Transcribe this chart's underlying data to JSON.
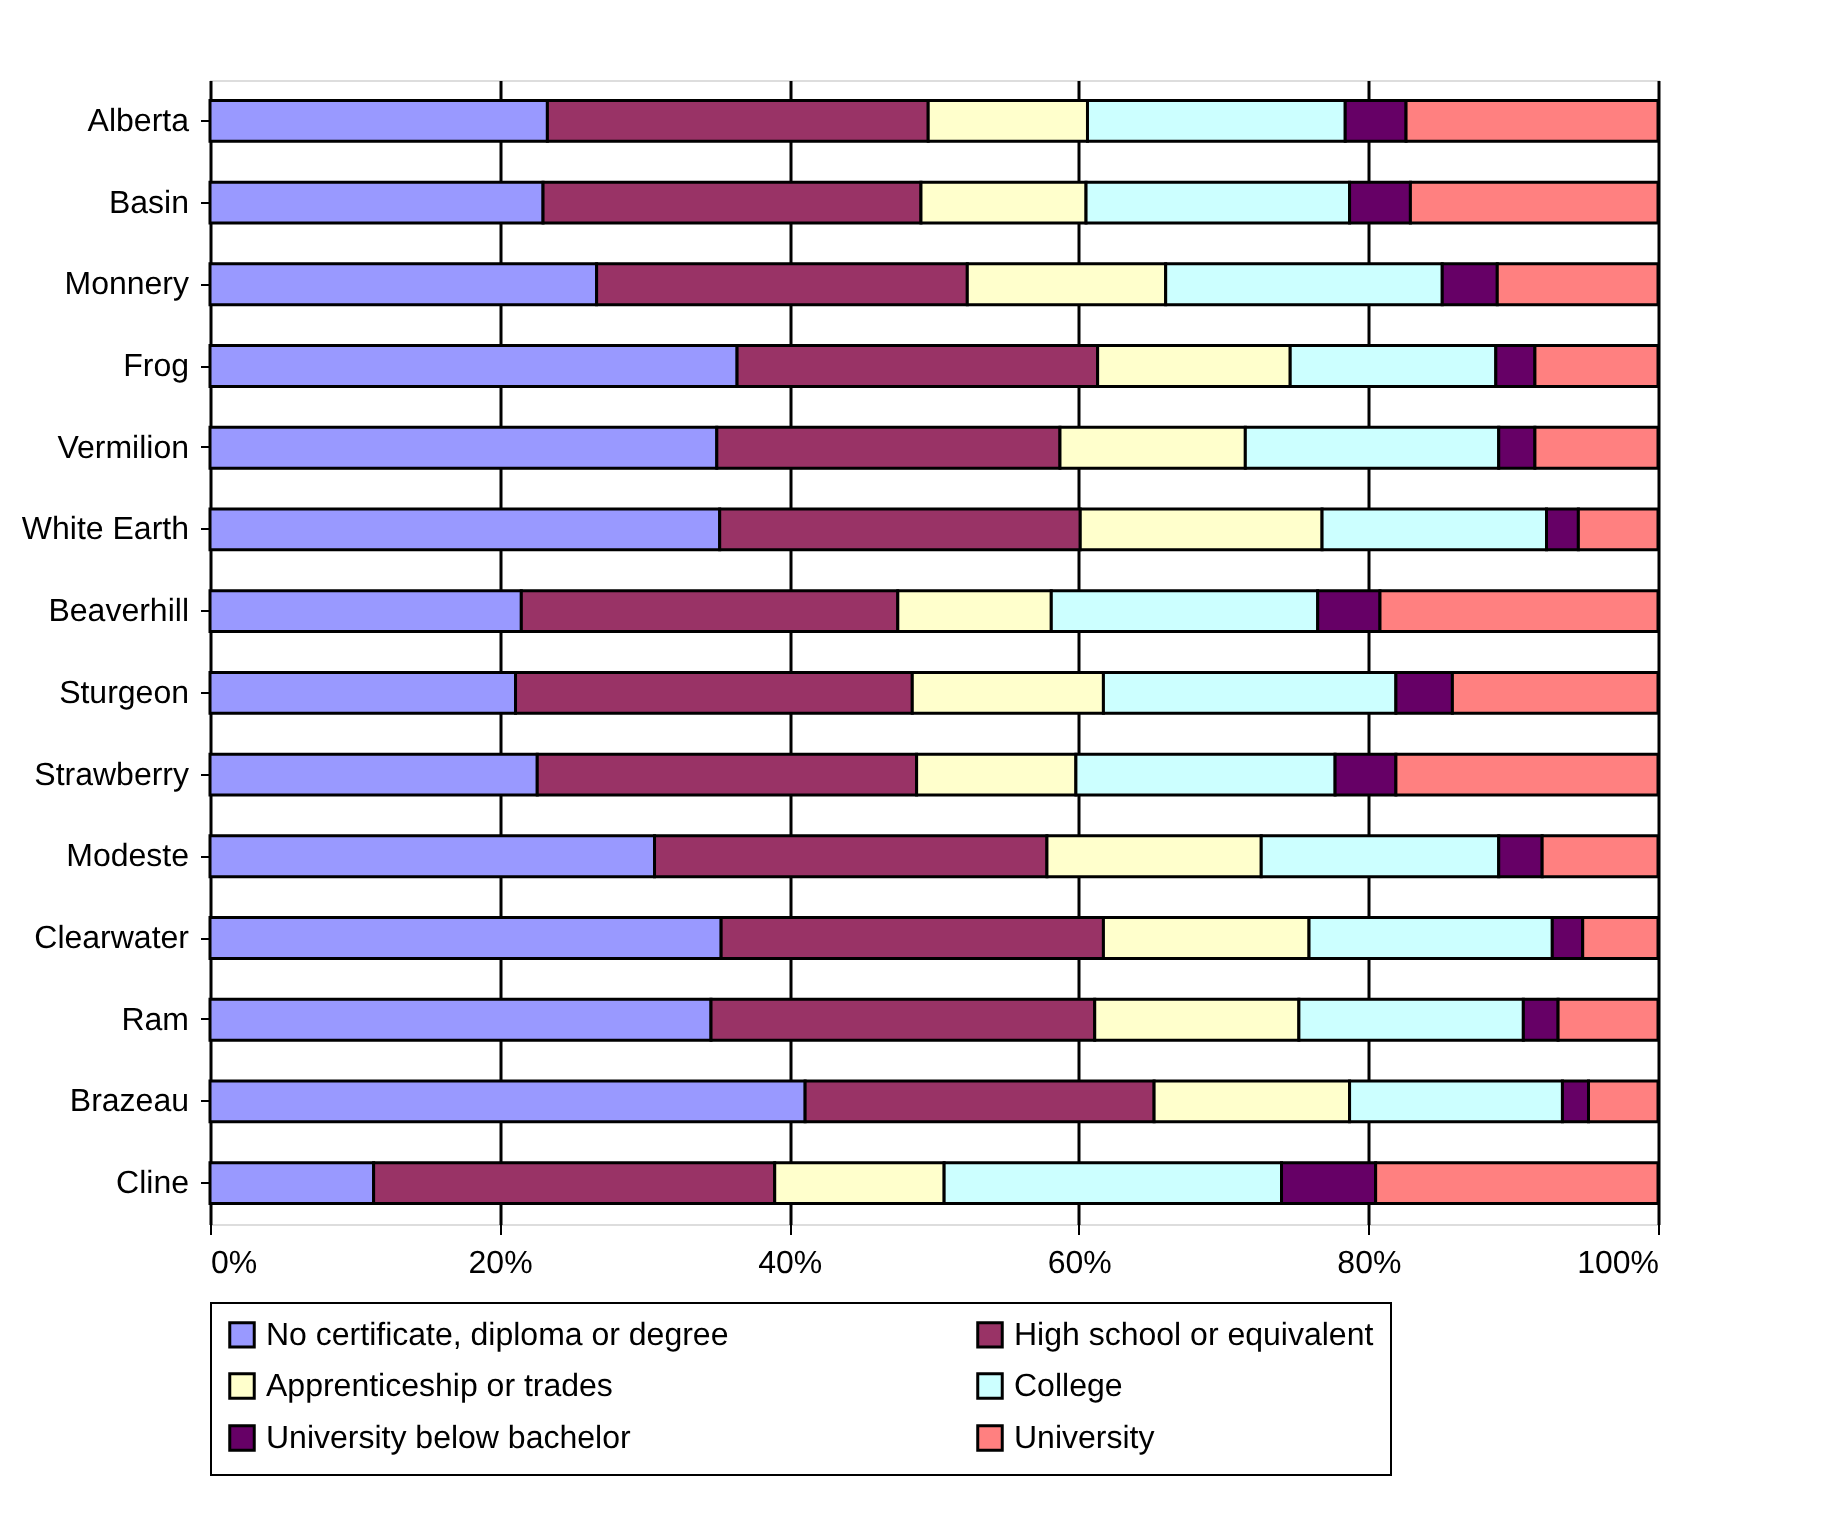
{
  "chart_data": {
    "type": "bar",
    "orientation": "horizontal",
    "stacked": true,
    "categories": [
      "Alberta",
      "Basin",
      "Monnery",
      "Frog",
      "Vermilion",
      "White Earth",
      "Beaverhill",
      "Sturgeon",
      "Strawberry",
      "Modeste",
      "Clearwater",
      "Ram",
      "Brazeau",
      "Cline"
    ],
    "series": [
      {
        "name": "No certificate, diploma or degree",
        "color": "#9999ff",
        "values": [
          23.3,
          23.0,
          26.7,
          36.4,
          35.0,
          35.2,
          21.5,
          21.1,
          22.6,
          30.7,
          35.3,
          34.6,
          41.1,
          11.3
        ]
      },
      {
        "name": "High school or equivalent",
        "color": "#993366",
        "values": [
          26.3,
          26.1,
          25.6,
          24.9,
          23.7,
          24.9,
          26.0,
          27.4,
          26.2,
          27.1,
          26.4,
          26.5,
          24.1,
          27.7
        ]
      },
      {
        "name": "Apprenticeship or trades",
        "color": "#ffffcc",
        "values": [
          11.0,
          11.4,
          13.7,
          13.3,
          12.8,
          16.7,
          10.6,
          13.2,
          11.0,
          14.8,
          14.2,
          14.1,
          13.5,
          11.7
        ]
      },
      {
        "name": "College",
        "color": "#ccffff",
        "values": [
          17.8,
          18.2,
          19.1,
          14.2,
          17.5,
          15.5,
          18.4,
          20.2,
          17.9,
          16.4,
          16.8,
          15.5,
          14.7,
          23.3
        ]
      },
      {
        "name": "University below bachelor",
        "color": "#660066",
        "values": [
          4.2,
          4.2,
          3.8,
          2.7,
          2.5,
          2.2,
          4.3,
          3.9,
          4.2,
          3.0,
          2.1,
          2.4,
          1.8,
          6.5
        ]
      },
      {
        "name": "University",
        "color": "#ff8080",
        "values": [
          17.4,
          17.1,
          11.1,
          8.5,
          8.5,
          5.5,
          19.2,
          14.2,
          18.1,
          8.0,
          5.2,
          6.9,
          4.8,
          19.5
        ]
      }
    ],
    "xlim": [
      0,
      100
    ],
    "xticks": [
      {
        "value": 0,
        "label": "0%"
      },
      {
        "value": 20,
        "label": "20%"
      },
      {
        "value": 40,
        "label": "40%"
      },
      {
        "value": 60,
        "label": "60%"
      },
      {
        "value": 80,
        "label": "80%"
      },
      {
        "value": 100,
        "label": "100%"
      }
    ],
    "grid": "x",
    "legend": "bottom"
  }
}
